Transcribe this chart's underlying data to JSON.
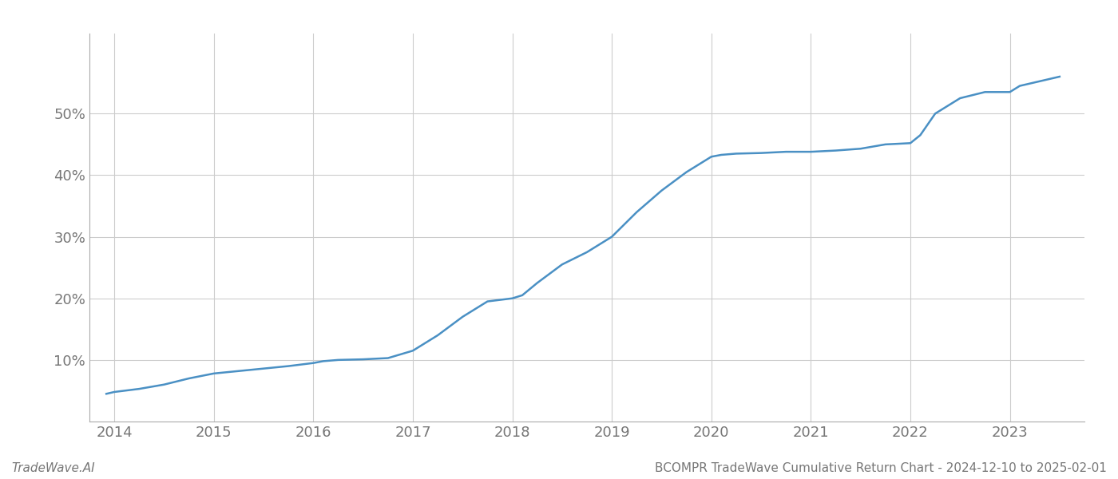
{
  "title": "",
  "footer_left": "TradeWave.AI",
  "footer_right": "BCOMPR TradeWave Cumulative Return Chart - 2024-12-10 to 2025-02-01",
  "line_color": "#4a90c4",
  "line_width": 1.8,
  "background_color": "#ffffff",
  "grid_color": "#cccccc",
  "x_years": [
    2013.92,
    2014.0,
    2014.25,
    2014.5,
    2014.75,
    2015.0,
    2015.25,
    2015.5,
    2015.75,
    2016.0,
    2016.1,
    2016.25,
    2016.5,
    2016.75,
    2017.0,
    2017.25,
    2017.5,
    2017.75,
    2018.0,
    2018.1,
    2018.25,
    2018.5,
    2018.75,
    2019.0,
    2019.25,
    2019.5,
    2019.75,
    2020.0,
    2020.1,
    2020.25,
    2020.5,
    2020.75,
    2021.0,
    2021.25,
    2021.5,
    2021.75,
    2022.0,
    2022.1,
    2022.25,
    2022.5,
    2022.75,
    2023.0,
    2023.1,
    2023.5
  ],
  "y_values": [
    4.5,
    4.8,
    5.3,
    6.0,
    7.0,
    7.8,
    8.2,
    8.6,
    9.0,
    9.5,
    9.8,
    10.0,
    10.1,
    10.3,
    11.5,
    14.0,
    17.0,
    19.5,
    20.0,
    20.5,
    22.5,
    25.5,
    27.5,
    30.0,
    34.0,
    37.5,
    40.5,
    43.0,
    43.3,
    43.5,
    43.6,
    43.8,
    43.8,
    44.0,
    44.3,
    45.0,
    45.2,
    46.5,
    50.0,
    52.5,
    53.5,
    53.5,
    54.5,
    56.0
  ],
  "yticks": [
    10,
    20,
    30,
    40,
    50
  ],
  "xticks": [
    2014,
    2015,
    2016,
    2017,
    2018,
    2019,
    2020,
    2021,
    2022,
    2023
  ],
  "xlim": [
    2013.75,
    2023.75
  ],
  "ylim": [
    0,
    63
  ]
}
